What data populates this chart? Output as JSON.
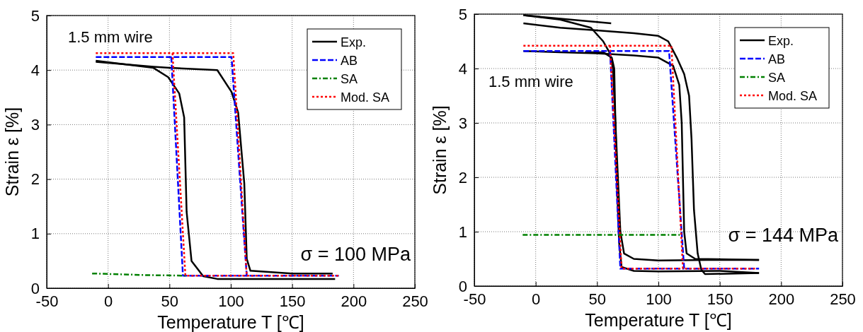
{
  "chart_data": [
    {
      "type": "line",
      "xlabel": "Temperature T [℃]",
      "ylabel": "Strain ε [%]",
      "xlim": [
        -50,
        250
      ],
      "xticks": [
        -50,
        0,
        50,
        100,
        150,
        200,
        250
      ],
      "ylim": [
        0,
        5
      ],
      "yticks": [
        0,
        1,
        2,
        3,
        4,
        5
      ],
      "grid": true,
      "legend": "top right",
      "annotations": [
        "1.5 mm wire",
        "σ = 100 MPa"
      ],
      "series": [
        {
          "name": "Exp.",
          "color": "#000000",
          "line_style": "solid",
          "x": [
            -10,
            37,
            50,
            89,
            100.6,
            106,
            111,
            113,
            116,
            150,
            183
          ],
          "values": [
            4.15,
            4.06,
            4.04,
            4.0,
            3.6,
            3.22,
            1.92,
            0.54,
            0.32,
            0.27,
            0.27
          ]
        },
        {
          "color": "#000000",
          "line_style": "solid",
          "x": [
            -10,
            37,
            49,
            58,
            62,
            64,
            68,
            77.5,
            89,
            150,
            185
          ],
          "values": [
            4.17,
            4.04,
            3.87,
            3.57,
            3.13,
            1.4,
            0.5,
            0.22,
            0.17,
            0.17,
            0.17
          ]
        },
        {
          "name": "AB",
          "color": "#0000ff",
          "line_style": "dashed",
          "x": [
            -10,
            100.6,
            113,
            188
          ],
          "values": [
            4.24,
            4.24,
            0.23,
            0.23
          ]
        },
        {
          "color": "#0000ff",
          "line_style": "dashed",
          "x": [
            51.5,
            61,
            113
          ],
          "values": [
            4.24,
            0.23,
            0.23
          ]
        },
        {
          "name": "SA",
          "color": "#008000",
          "line_style": "dashdot",
          "x": [
            -13,
            32,
            63
          ],
          "values": [
            0.27,
            0.24,
            0.23
          ]
        },
        {
          "name": "Mod. SA",
          "color": "#ff0000",
          "line_style": "dotted",
          "x": [
            -10,
            102,
            113,
            188
          ],
          "values": [
            4.31,
            4.31,
            0.23,
            0.23
          ]
        },
        {
          "color": "#ff0000",
          "line_style": "dotted",
          "x": [
            52.5,
            63,
            113
          ],
          "values": [
            4.31,
            0.23,
            0.23
          ]
        }
      ]
    },
    {
      "type": "line",
      "xlabel": "Temperature T [℃]",
      "ylabel": "Strain ε [%]",
      "xlim": [
        -50,
        250
      ],
      "xticks": [
        -50,
        0,
        50,
        100,
        150,
        200,
        250
      ],
      "ylim": [
        0,
        5
      ],
      "yticks": [
        0,
        1,
        2,
        3,
        4,
        5
      ],
      "grid": true,
      "legend": "top right",
      "annotations": [
        "1.5 mm wire",
        "σ = 144 MPa"
      ],
      "series": [
        {
          "name": "Exp.",
          "color": "#000000",
          "line_style": "solid",
          "x": [
            -10,
            20,
            45,
            55,
            60,
            63,
            65,
            67,
            69,
            72,
            80,
            100,
            140,
            182
          ],
          "values": [
            4.98,
            4.9,
            4.75,
            4.5,
            4.3,
            4.0,
            3.0,
            2.0,
            1.0,
            0.6,
            0.5,
            0.47,
            0.48,
            0.48
          ]
        },
        {
          "color": "#000000",
          "line_style": "solid",
          "x": [
            -10,
            61.5
          ],
          "values": [
            4.98,
            4.83
          ]
        },
        {
          "color": "#000000",
          "line_style": "solid",
          "x": [
            -10,
            20,
            50,
            80,
            100,
            112,
            117,
            119,
            120,
            121,
            123,
            130,
            182
          ],
          "values": [
            4.32,
            4.3,
            4.28,
            4.24,
            4.2,
            4.05,
            3.7,
            3.0,
            2.0,
            1.0,
            0.6,
            0.5,
            0.48
          ]
        },
        {
          "color": "#000000",
          "line_style": "solid",
          "x": [
            -10,
            20,
            50,
            80,
            100,
            108,
            115,
            121,
            125,
            127,
            129,
            132,
            135,
            138,
            182
          ],
          "values": [
            4.83,
            4.75,
            4.7,
            4.65,
            4.6,
            4.5,
            4.2,
            3.9,
            3.5,
            2.7,
            1.4,
            0.6,
            0.3,
            0.22,
            0.24
          ]
        },
        {
          "color": "#000000",
          "line_style": "solid",
          "x": [
            40,
            55,
            62,
            64,
            65,
            66,
            68,
            70,
            80,
            100,
            150,
            182
          ],
          "values": [
            4.3,
            4.3,
            4.2,
            4.0,
            3.0,
            2.0,
            0.8,
            0.35,
            0.28,
            0.27,
            0.28,
            0.24
          ]
        },
        {
          "name": "AB",
          "color": "#0000ff",
          "line_style": "dashed",
          "x": [
            -10,
            108.7,
            121,
            182
          ],
          "values": [
            4.32,
            4.32,
            0.32,
            0.32
          ]
        },
        {
          "color": "#0000ff",
          "line_style": "dashed",
          "x": [
            60.6,
            69,
            121
          ],
          "values": [
            4.32,
            0.32,
            0.32
          ]
        },
        {
          "name": "SA",
          "color": "#008000",
          "line_style": "dashdot",
          "x": [
            -10.6,
            118
          ],
          "values": [
            0.94,
            0.94
          ]
        },
        {
          "name": "Mod. SA",
          "color": "#ff0000",
          "line_style": "dotted",
          "x": [
            -10,
            110.6,
            120,
            180
          ],
          "values": [
            4.42,
            4.42,
            0.32,
            0.32
          ]
        },
        {
          "color": "#ff0000",
          "line_style": "dotted",
          "x": [
            60.6,
            70,
            120
          ],
          "values": [
            4.42,
            0.32,
            0.32
          ]
        }
      ]
    }
  ]
}
